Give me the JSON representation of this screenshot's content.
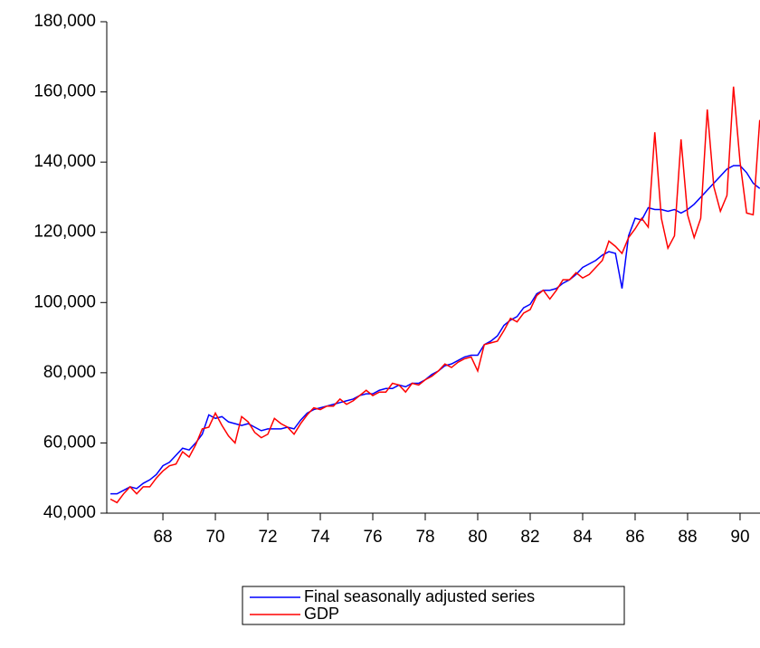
{
  "chart_data": {
    "type": "line",
    "x": [
      66,
      66.25,
      66.5,
      66.75,
      67,
      67.25,
      67.5,
      67.75,
      68,
      68.25,
      68.5,
      68.75,
      69,
      69.25,
      69.5,
      69.75,
      70,
      70.25,
      70.5,
      70.75,
      71,
      71.25,
      71.5,
      71.75,
      72,
      72.25,
      72.5,
      72.75,
      73,
      73.25,
      73.5,
      73.75,
      74,
      74.25,
      74.5,
      74.75,
      75,
      75.25,
      75.5,
      75.75,
      76,
      76.25,
      76.5,
      76.75,
      77,
      77.25,
      77.5,
      77.75,
      78,
      78.25,
      78.5,
      78.75,
      79,
      79.25,
      79.5,
      79.75,
      80,
      80.25,
      80.5,
      80.75,
      81,
      81.25,
      81.5,
      81.75,
      82,
      82.25,
      82.5,
      82.75,
      83,
      83.25,
      83.5,
      83.75,
      84,
      84.25,
      84.5,
      84.75,
      85,
      85.25,
      85.5,
      85.75,
      86,
      86.25,
      86.5,
      86.75,
      87,
      87.25,
      87.5,
      87.75,
      88,
      88.25,
      88.5,
      88.75,
      89,
      89.25,
      89.5,
      89.75,
      90,
      90.25,
      90.5,
      90.75
    ],
    "series": [
      {
        "name": "Final seasonally adjusted series",
        "color": "#0000ff",
        "values": [
          45500,
          45500,
          46500,
          47500,
          47000,
          48500,
          49500,
          51000,
          53500,
          54500,
          56500,
          58500,
          58000,
          60000,
          62500,
          68000,
          67000,
          67500,
          66000,
          65500,
          65000,
          65500,
          64500,
          63500,
          64000,
          64000,
          64000,
          64500,
          64000,
          66500,
          68500,
          69500,
          70000,
          70500,
          71000,
          71500,
          72000,
          72500,
          73500,
          74000,
          74000,
          75000,
          75500,
          75500,
          76500,
          76000,
          77000,
          77000,
          78000,
          79500,
          80500,
          82000,
          82500,
          83500,
          84500,
          85000,
          85000,
          88000,
          89000,
          90500,
          93500,
          95000,
          96000,
          98500,
          99500,
          102500,
          103500,
          103500,
          104000,
          105500,
          106500,
          108000,
          110000,
          111000,
          112000,
          113500,
          114500,
          114000,
          104000,
          119000,
          124000,
          123500,
          127000,
          126500,
          126500,
          126000,
          126500,
          125500,
          126500,
          128000,
          130000,
          132000,
          134000,
          136000,
          138000,
          139000,
          139000,
          137000,
          134000,
          132500
        ]
      },
      {
        "name": "GDP",
        "color": "#ff0000",
        "values": [
          44000,
          43000,
          45500,
          47500,
          45500,
          47500,
          47500,
          50000,
          52000,
          53500,
          54000,
          57500,
          56000,
          59500,
          64000,
          64500,
          68500,
          65000,
          62000,
          60000,
          67500,
          66000,
          63000,
          61500,
          62500,
          67000,
          65500,
          64500,
          62500,
          65500,
          68000,
          70000,
          69500,
          70500,
          70500,
          72500,
          71000,
          72000,
          73500,
          75000,
          73500,
          74500,
          74500,
          77000,
          76500,
          74500,
          77000,
          76500,
          78000,
          79000,
          80500,
          82500,
          81500,
          83000,
          84000,
          84500,
          80500,
          88000,
          88500,
          89000,
          92000,
          95500,
          94500,
          97000,
          98000,
          102000,
          103500,
          101000,
          103500,
          106500,
          106500,
          108500,
          107000,
          108000,
          110000,
          112000,
          117500,
          116000,
          114000,
          118500,
          121000,
          124000,
          121500,
          148500,
          124000,
          115500,
          119000,
          146500,
          125000,
          118500,
          124000,
          155000,
          133000,
          126000,
          130500,
          161500,
          140000,
          125500,
          125000,
          152000
        ]
      }
    ],
    "xlim": [
      65.86,
      90.76
    ],
    "xticks": [
      68,
      70,
      72,
      74,
      76,
      78,
      80,
      82,
      84,
      86,
      88,
      90
    ],
    "ylim": [
      40000,
      180000
    ],
    "yticks": [
      {
        "value": 40000,
        "label": "40,000"
      },
      {
        "value": 60000,
        "label": "60,000"
      },
      {
        "value": 80000,
        "label": "80,000"
      },
      {
        "value": 100000,
        "label": "100,000"
      },
      {
        "value": 120000,
        "label": "120,000"
      },
      {
        "value": 140000,
        "label": "140,000"
      },
      {
        "value": 160000,
        "label": "160,000"
      },
      {
        "value": 180000,
        "label": "180,000"
      }
    ],
    "legend": "bottom"
  }
}
